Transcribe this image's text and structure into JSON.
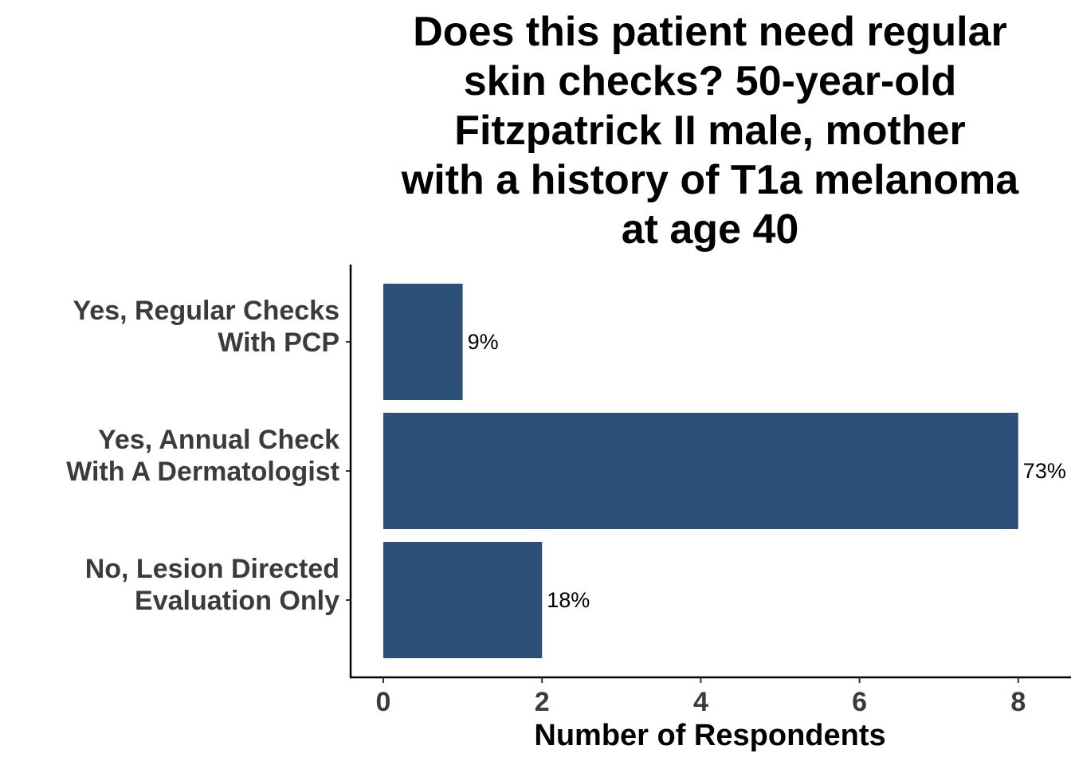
{
  "chart_data": {
    "type": "bar",
    "orientation": "horizontal",
    "title_lines": [
      "Does this patient need regular",
      "skin checks? 50-year-old",
      "Fitzpatrick II male, mother",
      "with a history of T1a melanoma",
      "at age 40"
    ],
    "categories": [
      [
        "Yes, Regular Checks",
        "With PCP"
      ],
      [
        "Yes, Annual Check",
        "With A Dermatologist"
      ],
      [
        "No, Lesion Directed",
        "Evaluation Only"
      ]
    ],
    "values": [
      1,
      8,
      2
    ],
    "data_labels": [
      "9%",
      "73%",
      "18%"
    ],
    "xlabel": "Number of Respondents",
    "ylabel": "",
    "xlim": [
      0,
      8.6
    ],
    "x_ticks": [
      0,
      2,
      4,
      6,
      8
    ],
    "bar_color": "#2c5078",
    "grid": false,
    "legend": "none"
  }
}
